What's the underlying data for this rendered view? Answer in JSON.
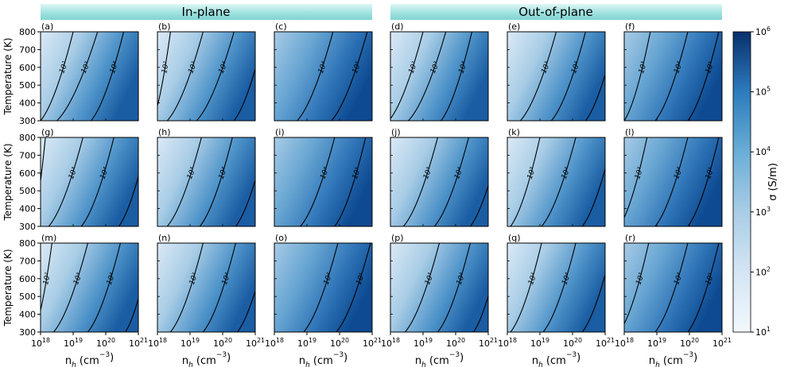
{
  "chart_data": {
    "type": "heatmap",
    "group_titles": [
      "In-plane",
      "Out-of-plane"
    ],
    "ylabel": "Temperature (K)",
    "xlabel": "n$_h$ (cm$^{-3}$)",
    "xlabel_main": "n",
    "xlabel_sub": "h",
    "xlabel_rest": " (cm",
    "xlabel_sup": "−3",
    "xlabel_close": ")",
    "x_scale": "log",
    "x_range": [
      1e+18,
      1e+21
    ],
    "x_ticks": [
      {
        "base": "10",
        "exp": "18"
      },
      {
        "base": "10",
        "exp": "19"
      },
      {
        "base": "10",
        "exp": "20"
      },
      {
        "base": "10",
        "exp": "21"
      }
    ],
    "y_range": [
      300,
      800
    ],
    "y_ticks": [
      "300",
      "400",
      "500",
      "600",
      "700",
      "800"
    ],
    "colorbar": {
      "label": "σ (S/m)",
      "scale": "log",
      "range": [
        10.0,
        1000000.0
      ],
      "ticks": [
        {
          "base": "10",
          "exp": "1"
        },
        {
          "base": "10",
          "exp": "2"
        },
        {
          "base": "10",
          "exp": "3"
        },
        {
          "base": "10",
          "exp": "4"
        },
        {
          "base": "10",
          "exp": "5"
        },
        {
          "base": "10",
          "exp": "6"
        }
      ],
      "color_low": "#f2f8fd",
      "color_high": "#08306b"
    },
    "panels": [
      {
        "label": "(a)",
        "contours": [
          {
            "value": "10²",
            "x": [
              18.0,
              19.0
            ],
            "y": [
              300,
              800
            ]
          },
          {
            "value": "10³",
            "x": [
              18.5,
              19.75
            ],
            "y": [
              300,
              800
            ]
          },
          {
            "value": "10⁴",
            "x": [
              19.55,
              20.55
            ],
            "y": [
              300,
              800
            ]
          }
        ]
      },
      {
        "label": "(b)",
        "contours": [
          {
            "value": "10²",
            "x": [
              17.85,
              18.4
            ],
            "y": [
              300,
              800
            ]
          },
          {
            "value": "10³",
            "x": [
              18.3,
              19.4
            ],
            "y": [
              300,
              800
            ]
          },
          {
            "value": "10⁴",
            "x": [
              19.2,
              20.35
            ],
            "y": [
              300,
              800
            ]
          },
          {
            "value": "10⁵",
            "x": [
              20.35,
              21.3
            ],
            "y": [
              300,
              800
            ]
          }
        ]
      },
      {
        "label": "(c)",
        "contours": [
          {
            "value": "10⁴",
            "x": [
              18.7,
              19.8
            ],
            "y": [
              300,
              800
            ]
          },
          {
            "value": "10⁵",
            "x": [
              19.75,
              20.85
            ],
            "y": [
              300,
              800
            ]
          }
        ]
      },
      {
        "label": "(d)",
        "contours": [
          {
            "value": "10²",
            "x": [
              17.95,
              19.0
            ],
            "y": [
              300,
              800
            ]
          },
          {
            "value": "10³",
            "x": [
              18.55,
              19.7
            ],
            "y": [
              300,
              800
            ]
          },
          {
            "value": "10⁴",
            "x": [
              19.55,
              20.5
            ],
            "y": [
              300,
              800
            ]
          }
        ]
      },
      {
        "label": "(e)",
        "contours": [
          {
            "value": "10³",
            "x": [
              18.4,
              19.5
            ],
            "y": [
              300,
              800
            ]
          },
          {
            "value": "10⁴",
            "x": [
              19.35,
              20.4
            ],
            "y": [
              300,
              800
            ]
          },
          {
            "value": "10⁵",
            "x": [
              20.4,
              21.35
            ],
            "y": [
              300,
              800
            ]
          }
        ]
      },
      {
        "label": "(f)",
        "contours": [
          {
            "value": "10³",
            "x": [
              18.0,
              18.8
            ],
            "y": [
              300,
              800
            ]
          },
          {
            "value": "10⁴",
            "x": [
              18.95,
              19.95
            ],
            "y": [
              300,
              800
            ]
          },
          {
            "value": "10⁵",
            "x": [
              19.95,
              20.9
            ],
            "y": [
              300,
              800
            ]
          }
        ]
      },
      {
        "label": "(g)",
        "contours": [
          {
            "value": "10²",
            "x": [
              17.75,
              18.15
            ],
            "y": [
              300,
              800
            ]
          },
          {
            "value": "10³",
            "x": [
              18.25,
              19.3
            ],
            "y": [
              300,
              800
            ]
          },
          {
            "value": "10⁴",
            "x": [
              19.25,
              20.25
            ],
            "y": [
              300,
              800
            ]
          },
          {
            "value": "10⁵",
            "x": [
              20.4,
              21.3
            ],
            "y": [
              300,
              800
            ]
          }
        ]
      },
      {
        "label": "(h)",
        "contours": [
          {
            "value": "10³",
            "x": [
              18.3,
              19.35
            ],
            "y": [
              300,
              800
            ]
          },
          {
            "value": "10⁴",
            "x": [
              19.3,
              20.3
            ],
            "y": [
              300,
              800
            ]
          },
          {
            "value": "10⁵",
            "x": [
              20.4,
              21.35
            ],
            "y": [
              300,
              800
            ]
          }
        ]
      },
      {
        "label": "(i)",
        "contours": [
          {
            "value": "10⁴",
            "x": [
              18.8,
              19.85
            ],
            "y": [
              300,
              800
            ]
          },
          {
            "value": "10⁵",
            "x": [
              19.85,
              20.8
            ],
            "y": [
              300,
              800
            ]
          }
        ]
      },
      {
        "label": "(j)",
        "contours": [
          {
            "value": "10³",
            "x": [
              18.4,
              19.45
            ],
            "y": [
              300,
              800
            ]
          },
          {
            "value": "10⁴",
            "x": [
              19.35,
              20.4
            ],
            "y": [
              300,
              800
            ]
          },
          {
            "value": "10⁵",
            "x": [
              20.45,
              21.4
            ],
            "y": [
              300,
              800
            ]
          }
        ]
      },
      {
        "label": "(k)",
        "contours": [
          {
            "value": "10³",
            "x": [
              18.1,
              19.0
            ],
            "y": [
              300,
              800
            ]
          },
          {
            "value": "10⁴",
            "x": [
              19.05,
              20.1
            ],
            "y": [
              300,
              800
            ]
          },
          {
            "value": "10⁵",
            "x": [
              20.3,
              21.25
            ],
            "y": [
              300,
              800
            ]
          }
        ]
      },
      {
        "label": "(l)",
        "contours": [
          {
            "value": "10³",
            "x": [
              17.85,
              18.7
            ],
            "y": [
              300,
              800
            ]
          },
          {
            "value": "10⁴",
            "x": [
              18.95,
              19.95
            ],
            "y": [
              300,
              800
            ]
          },
          {
            "value": "10⁵",
            "x": [
              19.95,
              20.9
            ],
            "y": [
              300,
              800
            ]
          }
        ]
      },
      {
        "label": "(m)",
        "contours": [
          {
            "value": "10²",
            "x": [
              17.8,
              18.35
            ],
            "y": [
              300,
              800
            ]
          },
          {
            "value": "10³",
            "x": [
              18.4,
              19.45
            ],
            "y": [
              300,
              800
            ]
          },
          {
            "value": "10⁴",
            "x": [
              19.45,
              20.45
            ],
            "y": [
              300,
              800
            ]
          },
          {
            "value": "10⁵",
            "x": [
              20.6,
              21.4
            ],
            "y": [
              300,
              800
            ]
          }
        ]
      },
      {
        "label": "(n)",
        "contours": [
          {
            "value": "10³",
            "x": [
              18.4,
              19.4
            ],
            "y": [
              300,
              800
            ]
          },
          {
            "value": "10⁴",
            "x": [
              19.4,
              20.4
            ],
            "y": [
              300,
              800
            ]
          },
          {
            "value": "10⁵",
            "x": [
              20.45,
              21.4
            ],
            "y": [
              300,
              800
            ]
          }
        ]
      },
      {
        "label": "(o)",
        "contours": [
          {
            "value": "10⁴",
            "x": [
              18.9,
              19.95
            ],
            "y": [
              300,
              800
            ]
          },
          {
            "value": "10⁵",
            "x": [
              19.9,
              20.95
            ],
            "y": [
              300,
              800
            ]
          }
        ]
      },
      {
        "label": "(p)",
        "contours": [
          {
            "value": "10³",
            "x": [
              18.45,
              19.5
            ],
            "y": [
              300,
              800
            ]
          },
          {
            "value": "10⁴",
            "x": [
              19.45,
              20.45
            ],
            "y": [
              300,
              800
            ]
          },
          {
            "value": "10⁵",
            "x": [
              20.55,
              21.4
            ],
            "y": [
              300,
              800
            ]
          }
        ]
      },
      {
        "label": "(q)",
        "contours": [
          {
            "value": "10³",
            "x": [
              18.1,
              19.05
            ],
            "y": [
              300,
              800
            ]
          },
          {
            "value": "10⁴",
            "x": [
              19.1,
              20.1
            ],
            "y": [
              300,
              800
            ]
          },
          {
            "value": "10⁵",
            "x": [
              20.3,
              21.25
            ],
            "y": [
              300,
              800
            ]
          }
        ]
      },
      {
        "label": "(r)",
        "contours": [
          {
            "value": "10³",
            "x": [
              17.85,
              18.75
            ],
            "y": [
              300,
              800
            ]
          },
          {
            "value": "10⁴",
            "x": [
              18.95,
              19.95
            ],
            "y": [
              300,
              800
            ]
          },
          {
            "value": "10⁵",
            "x": [
              19.95,
              20.9
            ],
            "y": [
              300,
              800
            ]
          }
        ]
      }
    ]
  }
}
